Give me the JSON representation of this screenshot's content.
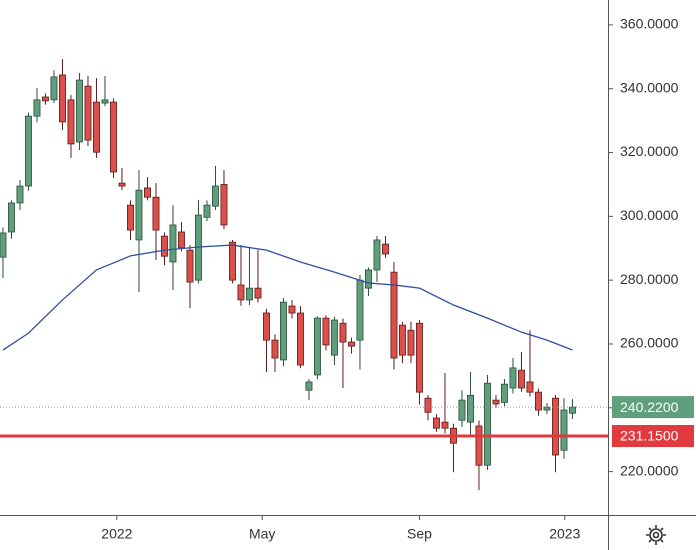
{
  "chart_data": {
    "type": "candlestick",
    "x": [
      0,
      1,
      2,
      3,
      4,
      5,
      6,
      7,
      8,
      9,
      10,
      11,
      12,
      13,
      14,
      15,
      16,
      17,
      18,
      19,
      20,
      21,
      22,
      23,
      24,
      25,
      26,
      27,
      28,
      29,
      30,
      31,
      32,
      33,
      34,
      35,
      36,
      37,
      38,
      39,
      40,
      41,
      42,
      43,
      44,
      45,
      46,
      47,
      48,
      49,
      50,
      51,
      52,
      53,
      54,
      55,
      56,
      57,
      58,
      59,
      60,
      61,
      62,
      63,
      64,
      65,
      66,
      67
    ],
    "open": [
      287.2,
      295.1,
      304.2,
      309.5,
      331.4,
      337.4,
      336.5,
      344.3,
      336.5,
      323.3,
      340.8,
      335.8,
      335.5,
      335.8,
      310.4,
      303.5,
      292.6,
      308.9,
      306.0,
      293.8,
      285.7,
      295.1,
      289.4,
      280.0,
      299.7,
      303.2,
      310.0,
      291.9,
      278.5,
      273.8,
      277.5,
      269.7,
      261.2,
      255.0,
      271.9,
      269.7,
      245.5,
      250.3,
      268.1,
      256.5,
      266.5,
      260.6,
      261.2,
      277.5,
      283.2,
      291.3,
      282.5,
      265.9,
      264.3,
      266.5,
      243.0,
      236.8,
      235.5,
      233.6,
      236.1,
      235.5,
      234.3,
      222.0,
      242.4,
      241.7,
      246.2,
      251.8,
      248.1,
      244.9,
      239.3,
      243.0,
      226.7,
      238.3
    ],
    "high": [
      296.5,
      305.0,
      311.4,
      332.5,
      340.2,
      338.5,
      345.8,
      349.3,
      338.0,
      344.9,
      344.0,
      343.3,
      344.0,
      337.0,
      315.1,
      305.0,
      314.5,
      312.3,
      310.4,
      295.0,
      303.5,
      298.2,
      291.0,
      305.1,
      305.0,
      315.8,
      314.5,
      292.6,
      291.0,
      290.1,
      289.4,
      271.0,
      263.0,
      274.4,
      273.8,
      271.9,
      249.0,
      268.7,
      269.0,
      268.5,
      268.0,
      262.0,
      281.6,
      284.0,
      293.8,
      293.8,
      285.7,
      266.9,
      267.0,
      267.5,
      244.0,
      238.0,
      250.9,
      235.0,
      245.5,
      251.2,
      236.0,
      250.3,
      244.0,
      249.0,
      255.6,
      257.5,
      264.3,
      246.0,
      241.5,
      244.0,
      243.0,
      242.7
    ],
    "low": [
      280.7,
      293.0,
      302.0,
      308.0,
      329.5,
      335.0,
      335.5,
      327.0,
      318.3,
      320.8,
      322.0,
      318.3,
      334.5,
      312.0,
      308.2,
      292.6,
      276.3,
      305.0,
      286.3,
      284.7,
      276.9,
      289.0,
      271.2,
      279.0,
      298.5,
      302.0,
      296.0,
      279.0,
      272.0,
      272.2,
      273.0,
      251.2,
      251.2,
      253.0,
      268.0,
      252.4,
      242.4,
      249.0,
      258.0,
      253.4,
      246.2,
      257.0,
      252.0,
      275.0,
      279.4,
      287.0,
      252.0,
      254.0,
      254.0,
      241.0,
      236.1,
      232.5,
      232.0,
      219.8,
      234.0,
      231.0,
      214.2,
      220.5,
      240.0,
      240.5,
      244.5,
      245.0,
      243.5,
      237.5,
      238.0,
      219.8,
      224.0,
      236.5
    ],
    "close": [
      294.8,
      304.2,
      309.5,
      331.4,
      336.5,
      336.2,
      343.7,
      329.6,
      322.7,
      342.7,
      323.9,
      320.1,
      336.5,
      313.9,
      309.5,
      295.7,
      308.2,
      306.0,
      295.7,
      287.5,
      297.3,
      290.1,
      279.4,
      300.4,
      303.5,
      309.5,
      297.3,
      280.0,
      273.8,
      277.5,
      274.4,
      261.2,
      255.6,
      273.1,
      269.7,
      253.4,
      248.1,
      268.1,
      259.7,
      267.5,
      260.6,
      259.3,
      280.0,
      283.2,
      292.6,
      288.2,
      255.6,
      256.5,
      256.5,
      244.9,
      238.6,
      233.6,
      233.6,
      228.9,
      242.4,
      243.9,
      222.0,
      247.7,
      241.2,
      247.4,
      252.5,
      246.2,
      244.9,
      239.3,
      240.2,
      225.2,
      239.3,
      240.22
    ],
    "up_color": "#5f9f7b",
    "down_color": "#dd4f4a",
    "moving_average": {
      "color": "#2f4fa0",
      "x": [
        0,
        3,
        7,
        11,
        15,
        19,
        23,
        27,
        31,
        35,
        39,
        43,
        46,
        49,
        53,
        57,
        61,
        64,
        67
      ],
      "values": [
        258.1,
        263.4,
        273.8,
        283.2,
        287.6,
        289.4,
        290.4,
        291.0,
        289.4,
        285.7,
        282.5,
        279.1,
        278.5,
        277.5,
        272.2,
        268.1,
        263.7,
        261.2,
        258.1
      ]
    },
    "price_lines": [
      {
        "value": 240.22,
        "label": "240.2200",
        "color": "#5f9f7b",
        "style": "dotted"
      },
      {
        "value": 231.15,
        "label": "231.1500",
        "color": "#e0393e",
        "style": "solid"
      }
    ],
    "xlim": [
      -0.35,
      71.18
    ],
    "ylim": [
      206.4,
      367.8
    ],
    "xticks": [
      {
        "value": 13.4,
        "label": "2022"
      },
      {
        "value": 30.5,
        "label": "May"
      },
      {
        "value": 49.0,
        "label": "Sep"
      },
      {
        "value": 66.1,
        "label": "2023"
      }
    ],
    "yticks": [
      {
        "value": 220,
        "label": "220.0000"
      },
      {
        "value": 240,
        "label": "240.0000"
      },
      {
        "value": 260,
        "label": "260.0000"
      },
      {
        "value": 280,
        "label": "280.0000"
      },
      {
        "value": 300,
        "label": "300.0000"
      },
      {
        "value": 320,
        "label": "320.0000"
      },
      {
        "value": 340,
        "label": "340.0000"
      },
      {
        "value": 360,
        "label": "360.0000"
      }
    ]
  }
}
